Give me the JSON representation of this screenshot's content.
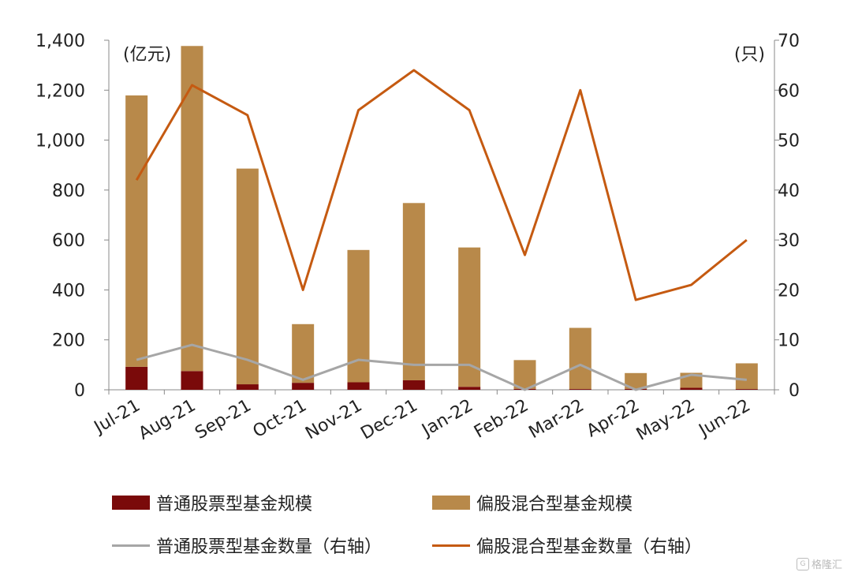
{
  "chart_data": {
    "type": "bar",
    "categories": [
      "Jul-21",
      "Aug-21",
      "Sep-21",
      "Oct-21",
      "Nov-21",
      "Dec-21",
      "Jan-22",
      "Feb-22",
      "Mar-22",
      "Apr-22",
      "May-22",
      "Jun-22"
    ],
    "left_axis": {
      "unit": "(亿元)",
      "ylim": [
        0,
        1400
      ],
      "ticks": [
        "0",
        "200",
        "400",
        "600",
        "800",
        "1,000",
        "1,200",
        "1,400"
      ]
    },
    "right_axis": {
      "unit": "(只)",
      "ylim": [
        0,
        70
      ],
      "ticks": [
        "0",
        "10",
        "20",
        "30",
        "40",
        "50",
        "60",
        "70"
      ]
    },
    "series": [
      {
        "name": "普通股票型基金规模",
        "kind": "bar",
        "axis": "left",
        "color": "#7a0a0a",
        "values": [
          92,
          75,
          22,
          28,
          30,
          38,
          12,
          4,
          3,
          4,
          8,
          3
        ]
      },
      {
        "name": "偏股混合型基金规模",
        "kind": "bar",
        "axis": "left",
        "color": "#b8894a",
        "values": [
          1087,
          1302,
          864,
          235,
          530,
          710,
          558,
          115,
          245,
          63,
          60,
          103
        ]
      },
      {
        "name": "普通股票型基金数量（右轴）",
        "kind": "line",
        "axis": "right",
        "color": "#a6a6a6",
        "values": [
          6,
          9,
          6,
          2,
          6,
          5,
          5,
          0,
          5,
          0,
          3,
          2
        ]
      },
      {
        "name": "偏股混合型基金数量（右轴）",
        "kind": "line",
        "axis": "right",
        "color": "#c55a11",
        "values": [
          42,
          61,
          55,
          20,
          56,
          64,
          56,
          27,
          60,
          18,
          21,
          30
        ]
      }
    ],
    "grid": false,
    "legend_position": "bottom"
  },
  "legend": {
    "item1": "普通股票型基金规模",
    "item2": "偏股混合型基金规模",
    "item3": "普通股票型基金数量（右轴）",
    "item4": "偏股混合型基金数量（右轴）"
  },
  "watermark": {
    "text": "格隆汇",
    "icon": "G"
  }
}
